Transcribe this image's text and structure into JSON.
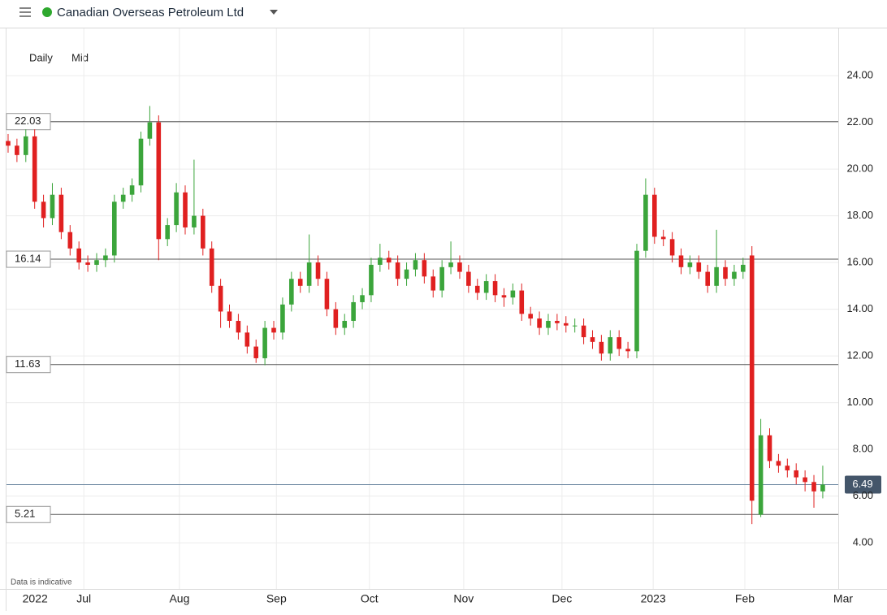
{
  "header": {
    "title": "Canadian Overseas Petroleum Ltd"
  },
  "chart_data": {
    "type": "candlestick",
    "interval": "Daily",
    "price": "Mid",
    "note": "Data is indicative",
    "xlim": [
      -1.83,
      187.5
    ],
    "ylim": [
      2.02,
      26.02
    ],
    "xticks": [
      {
        "value": 6.1,
        "label": "2022"
      },
      {
        "value": 17.1,
        "label": "Jul"
      },
      {
        "value": 38.7,
        "label": "Aug"
      },
      {
        "value": 60.6,
        "label": "Sep"
      },
      {
        "value": 81.6,
        "label": "Oct"
      },
      {
        "value": 102.9,
        "label": "Nov"
      },
      {
        "value": 125.1,
        "label": "Dec"
      },
      {
        "value": 145.7,
        "label": "2023"
      },
      {
        "value": 166.4,
        "label": "Feb"
      },
      {
        "value": 188.6,
        "label": "Mar"
      }
    ],
    "yticks": [
      {
        "value": 4,
        "label": "4.00"
      },
      {
        "value": 6,
        "label": "6.00"
      },
      {
        "value": 8,
        "label": "8.00"
      },
      {
        "value": 10,
        "label": "10.00"
      },
      {
        "value": 12,
        "label": "12.00"
      },
      {
        "value": 14,
        "label": "14.00"
      },
      {
        "value": 16,
        "label": "16.00"
      },
      {
        "value": 18,
        "label": "18.00"
      },
      {
        "value": 20,
        "label": "20.00"
      },
      {
        "value": 22,
        "label": "22.00"
      },
      {
        "value": 24,
        "label": "24.00"
      }
    ],
    "grid": true,
    "up_color": "#3ba53b",
    "down_color": "#e02020",
    "levels": [
      22.03,
      16.14,
      11.63,
      5.21
    ],
    "last_price": 6.49,
    "x": [
      0,
      2,
      4,
      6,
      8,
      10,
      12,
      14,
      16,
      18,
      20,
      22,
      24,
      26,
      28,
      30,
      32,
      34,
      36,
      38,
      40,
      42,
      44,
      46,
      48,
      50,
      52,
      54,
      56,
      58,
      60,
      62,
      64,
      66,
      68,
      70,
      72,
      74,
      76,
      78,
      80,
      82,
      84,
      86,
      88,
      90,
      92,
      94,
      96,
      98,
      100,
      102,
      104,
      106,
      108,
      110,
      112,
      114,
      116,
      118,
      120,
      122,
      124,
      126,
      128,
      130,
      132,
      134,
      136,
      138,
      140,
      142,
      144,
      146,
      148,
      150,
      152,
      154,
      156,
      158,
      160,
      162,
      164,
      166,
      168,
      170,
      172,
      174,
      176,
      178,
      180,
      182,
      184
    ],
    "open": [
      21.2,
      21.0,
      20.6,
      21.4,
      18.6,
      17.9,
      18.9,
      17.3,
      16.6,
      16.0,
      15.9,
      16.1,
      16.3,
      18.6,
      18.9,
      19.3,
      21.3,
      22.0,
      17.0,
      17.6,
      19.0,
      17.5,
      18.0,
      16.6,
      15.0,
      13.9,
      13.5,
      13.0,
      12.4,
      11.9,
      13.2,
      13.0,
      14.2,
      15.3,
      15.0,
      16.0,
      15.3,
      14.0,
      13.2,
      13.5,
      14.3,
      14.6,
      15.9,
      16.2,
      16.0,
      15.3,
      15.7,
      16.1,
      15.4,
      14.8,
      15.8,
      16.0,
      15.6,
      15.0,
      14.7,
      15.2,
      14.6,
      14.5,
      14.8,
      13.8,
      13.6,
      13.2,
      13.5,
      13.4,
      13.3,
      13.3,
      12.8,
      12.6,
      12.1,
      12.8,
      12.3,
      12.2,
      16.5,
      18.9,
      17.1,
      17.0,
      16.3,
      15.8,
      16.0,
      15.6,
      15.0,
      15.8,
      15.3,
      15.6,
      16.3,
      5.2,
      8.6,
      7.5,
      7.3,
      7.1,
      6.8,
      6.6,
      6.2
    ],
    "high": [
      21.5,
      21.3,
      21.7,
      21.7,
      18.9,
      19.4,
      19.2,
      17.6,
      16.9,
      16.3,
      16.4,
      16.6,
      18.9,
      19.2,
      19.6,
      21.6,
      22.7,
      22.3,
      17.9,
      19.4,
      19.3,
      20.4,
      18.3,
      16.9,
      15.3,
      14.2,
      13.8,
      13.3,
      12.7,
      13.5,
      13.5,
      14.5,
      15.6,
      15.6,
      17.2,
      16.3,
      15.6,
      14.3,
      13.8,
      14.6,
      14.9,
      16.2,
      16.8,
      16.5,
      16.3,
      16.0,
      16.4,
      16.4,
      15.7,
      16.1,
      16.9,
      16.3,
      15.9,
      15.3,
      15.5,
      15.5,
      14.9,
      15.1,
      15.1,
      14.1,
      13.9,
      13.8,
      13.8,
      13.7,
      13.6,
      13.6,
      13.1,
      12.9,
      13.1,
      13.1,
      12.6,
      16.8,
      19.6,
      19.2,
      17.4,
      17.3,
      16.6,
      16.3,
      16.3,
      15.9,
      17.4,
      16.1,
      15.9,
      16.2,
      16.7,
      9.3,
      8.9,
      7.8,
      7.6,
      7.4,
      7.1,
      6.9,
      7.3
    ],
    "low": [
      20.7,
      20.3,
      20.3,
      18.3,
      17.5,
      17.6,
      17.0,
      16.3,
      15.7,
      15.6,
      15.6,
      15.8,
      16.0,
      18.3,
      18.6,
      19.0,
      21.0,
      16.1,
      16.7,
      17.3,
      17.2,
      17.2,
      16.3,
      14.7,
      13.2,
      13.2,
      12.7,
      12.1,
      11.7,
      11.6,
      12.7,
      12.7,
      13.9,
      14.7,
      14.7,
      15.0,
      13.7,
      12.9,
      12.9,
      13.2,
      14.0,
      14.3,
      15.6,
      15.7,
      15.0,
      15.0,
      15.4,
      15.1,
      14.5,
      14.5,
      15.5,
      15.3,
      14.7,
      14.4,
      14.4,
      14.3,
      14.1,
      14.2,
      13.5,
      13.3,
      12.9,
      12.9,
      13.1,
      13.0,
      13.0,
      12.5,
      12.3,
      11.8,
      11.8,
      12.0,
      11.9,
      11.9,
      16.2,
      16.8,
      16.7,
      16.0,
      15.5,
      15.5,
      15.3,
      14.7,
      14.7,
      15.0,
      15.0,
      15.3,
      4.8,
      5.1,
      7.2,
      7.0,
      6.8,
      6.5,
      6.2,
      5.5,
      5.9
    ],
    "close": [
      21.0,
      20.6,
      21.4,
      18.6,
      17.9,
      18.9,
      17.3,
      16.6,
      16.0,
      15.9,
      16.1,
      16.3,
      18.6,
      18.9,
      19.3,
      21.3,
      22.0,
      17.0,
      17.6,
      19.0,
      17.5,
      18.0,
      16.6,
      15.0,
      13.9,
      13.5,
      13.0,
      12.4,
      11.9,
      13.2,
      13.0,
      14.2,
      15.3,
      15.0,
      16.0,
      15.3,
      14.0,
      13.2,
      13.5,
      14.3,
      14.6,
      15.9,
      16.2,
      16.0,
      15.3,
      15.7,
      16.1,
      15.4,
      14.8,
      15.8,
      16.0,
      15.6,
      15.0,
      14.7,
      15.2,
      14.6,
      14.5,
      14.8,
      13.8,
      13.6,
      13.2,
      13.5,
      13.4,
      13.3,
      13.3,
      12.8,
      12.6,
      12.1,
      12.8,
      12.3,
      12.2,
      16.5,
      18.9,
      17.1,
      17.0,
      16.3,
      15.8,
      16.0,
      15.6,
      15.0,
      15.8,
      15.3,
      15.6,
      15.9,
      5.8,
      8.6,
      7.5,
      7.3,
      7.1,
      6.8,
      6.6,
      6.2,
      6.49
    ]
  }
}
